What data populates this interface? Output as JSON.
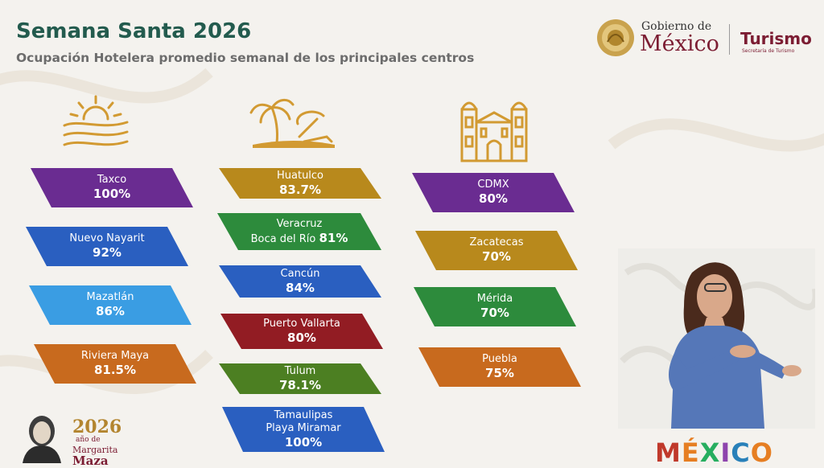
{
  "header": {
    "title": "Semana Santa 2026",
    "subtitle": "Ocupación Hotelera promedio semanal de los principales centros"
  },
  "logo": {
    "gobierno_small": "Gobierno de",
    "gobierno_big": "México",
    "turismo": "Turismo",
    "sectur": "Secretaría de Turismo"
  },
  "icons": [
    "sun-landscape-icon",
    "palm-beach-icon",
    "cathedral-icon"
  ],
  "columns": [
    {
      "items": [
        {
          "name": "Taxco",
          "value": "100%",
          "color": "#6a2c91"
        },
        {
          "name": "Nuevo Nayarit",
          "value": "92%",
          "color": "#2a5fc0"
        },
        {
          "name": "Mazatlán",
          "value": "86%",
          "color": "#3a9de3"
        },
        {
          "name": "Riviera Maya",
          "value": "81.5%",
          "color": "#c86a1e"
        }
      ]
    },
    {
      "items": [
        {
          "name": "Huatulco",
          "value": "83.7%",
          "color": "#b8891c"
        },
        {
          "name": "Veracruz",
          "name2": "Boca del Río",
          "value": "81%",
          "color": "#2d8b3c"
        },
        {
          "name": "Cancún",
          "value": "84%",
          "color": "#2a5fc0"
        },
        {
          "name": "Puerto Vallarta",
          "value": "80%",
          "color": "#921c23"
        },
        {
          "name": "Tulum",
          "value": "78.1%",
          "color": "#4c7f22"
        },
        {
          "name": "Tamaulipas",
          "name2": "Playa Miramar",
          "value": "100%",
          "color": "#2a5fc0"
        }
      ]
    },
    {
      "items": [
        {
          "name": "CDMX",
          "value": "80%",
          "color": "#6a2c91"
        },
        {
          "name": "Zacatecas",
          "value": "70%",
          "color": "#b8891c"
        },
        {
          "name": "Mérida",
          "value": "70%",
          "color": "#2d8b3c"
        },
        {
          "name": "Puebla",
          "value": "75%",
          "color": "#c86a1e"
        }
      ]
    }
  ],
  "footer": {
    "year": "2026",
    "line1": "año de",
    "line2": "Margarita",
    "line3": "Maza",
    "brand_letters": [
      "M",
      "É",
      "X",
      "I",
      "C",
      "O"
    ],
    "brand_colors": [
      "#c0392b",
      "#e67e22",
      "#27ae60",
      "#8e44ad",
      "#2980b9",
      "#e67e22"
    ]
  }
}
